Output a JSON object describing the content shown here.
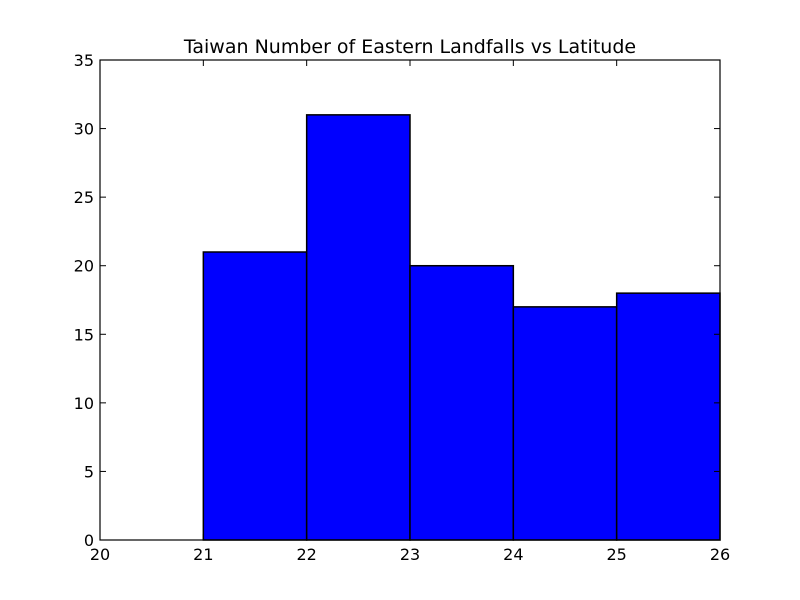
{
  "chart_data": {
    "type": "bar",
    "title": "Taiwan Number of Eastern Landfalls vs Latitude",
    "xlabel": "",
    "ylabel": "",
    "bin_edges": [
      20,
      21,
      22,
      23,
      24,
      25,
      26
    ],
    "values": [
      0,
      21,
      31,
      20,
      17,
      18
    ],
    "xlim": [
      20,
      26
    ],
    "ylim": [
      0,
      35
    ],
    "x_ticks": [
      20,
      21,
      22,
      23,
      24,
      25,
      26
    ],
    "y_ticks": [
      0,
      5,
      10,
      15,
      20,
      25,
      30,
      35
    ],
    "grid": false,
    "legend": "none",
    "bar_color": "#0000ff",
    "edge_color": "#000000"
  }
}
